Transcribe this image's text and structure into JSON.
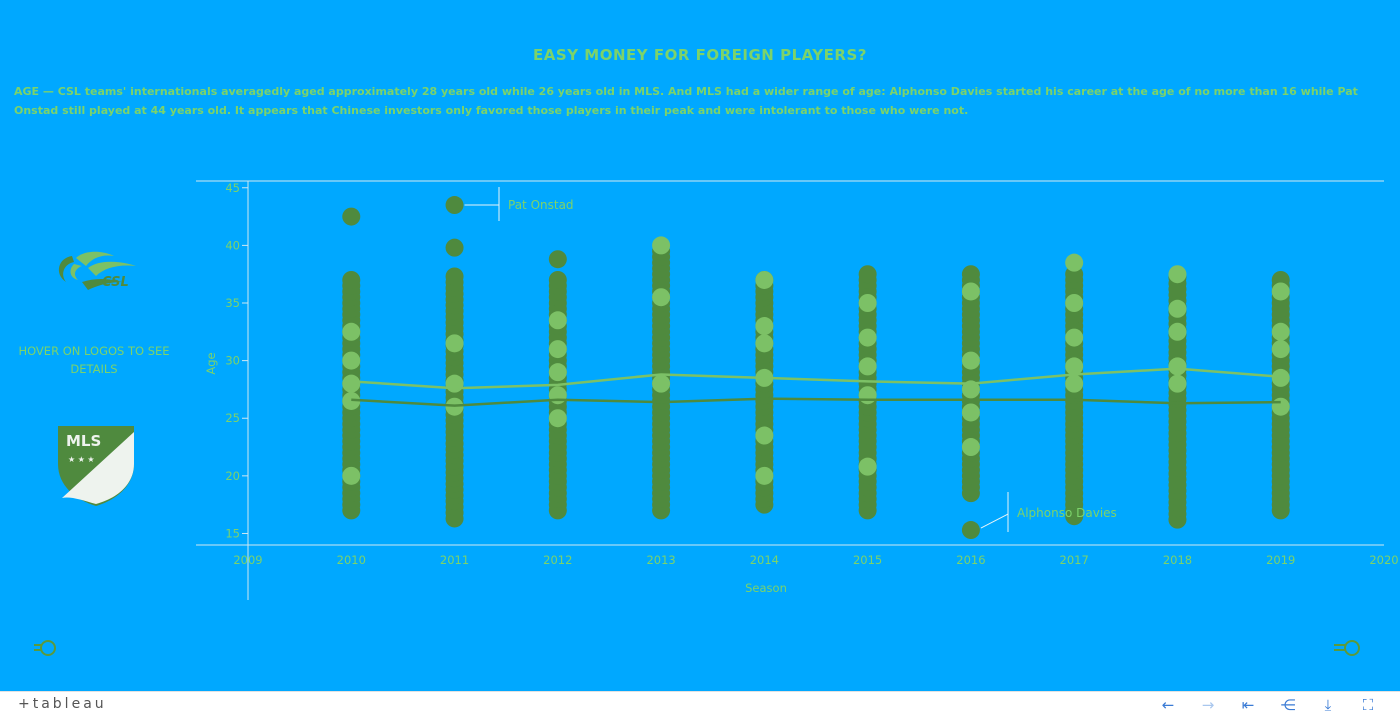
{
  "header": {
    "title": "EASY MONEY FOR FOREIGN PLAYERS?",
    "description": "AGE — CSL teams' internationals averagedly aged approximately 28 years old while 26 years old in MLS. And MLS had a wider range of age: Alphonso Davies started his career at the age of no more than 16 while Pat Onstad still played at 44 years old. It appears that Chinese investors only favored those players in their peak and were intolerant to those who were not."
  },
  "sidebar": {
    "hover_note": "HOVER ON LOGOS TO SEE DETAILS",
    "csl_logo_text": "CSL",
    "mls_logo_text": "MLS"
  },
  "colors": {
    "background": "#00a8ff",
    "accent_text": "#7cd36a",
    "mls_dark_green": "#4f8a3e",
    "csl_light_green": "#7cc166",
    "axis_line": "#cfe8f2"
  },
  "toolbar": {
    "brand": "+tableau",
    "icons": [
      "undo-icon",
      "redo-icon",
      "revert-icon",
      "share-icon",
      "download-icon",
      "fullscreen-icon"
    ]
  },
  "chart_data": {
    "type": "scatter",
    "xlabel": "Season",
    "ylabel": "Age",
    "xlim": [
      2009,
      2020
    ],
    "ylim": [
      14,
      45.5
    ],
    "x_ticks": [
      2009,
      2010,
      2011,
      2012,
      2013,
      2014,
      2015,
      2016,
      2017,
      2018,
      2019,
      2020
    ],
    "y_ticks": [
      15,
      20,
      25,
      30,
      35,
      40,
      45
    ],
    "grid": false,
    "series": [
      {
        "name": "MLS",
        "color": "#4f8a3e",
        "ranges": [
          {
            "season": 2010,
            "min": 17,
            "max": 37
          },
          {
            "season": 2011,
            "min": 16.3,
            "max": 37.5
          },
          {
            "season": 2012,
            "min": 17,
            "max": 37
          },
          {
            "season": 2013,
            "min": 17,
            "max": 39.5
          },
          {
            "season": 2014,
            "min": 17.5,
            "max": 37.3
          },
          {
            "season": 2015,
            "min": 17,
            "max": 37.5
          },
          {
            "season": 2016,
            "min": 18.5,
            "max": 37.5
          },
          {
            "season": 2017,
            "min": 16.5,
            "max": 37.5
          },
          {
            "season": 2018,
            "min": 16.2,
            "max": 37.5
          },
          {
            "season": 2019,
            "min": 17,
            "max": 37.3
          }
        ],
        "outliers": [
          {
            "season": 2010,
            "age": 42.5
          },
          {
            "season": 2011,
            "age": 43.5
          },
          {
            "season": 2011,
            "age": 39.8
          },
          {
            "season": 2012,
            "age": 38.8
          },
          {
            "season": 2016,
            "age": 15.3
          }
        ],
        "average": [
          26.6,
          26.1,
          26.6,
          26.4,
          26.7,
          26.6,
          26.6,
          26.6,
          26.3,
          26.4
        ]
      },
      {
        "name": "CSL",
        "color": "#7cc166",
        "points": [
          {
            "season": 2010,
            "age": 32.5
          },
          {
            "season": 2010,
            "age": 30
          },
          {
            "season": 2010,
            "age": 28
          },
          {
            "season": 2010,
            "age": 26.5
          },
          {
            "season": 2010,
            "age": 20
          },
          {
            "season": 2011,
            "age": 31.5
          },
          {
            "season": 2011,
            "age": 28
          },
          {
            "season": 2011,
            "age": 26
          },
          {
            "season": 2012,
            "age": 33.5
          },
          {
            "season": 2012,
            "age": 31
          },
          {
            "season": 2012,
            "age": 29
          },
          {
            "season": 2012,
            "age": 27
          },
          {
            "season": 2012,
            "age": 25
          },
          {
            "season": 2013,
            "age": 40
          },
          {
            "season": 2013,
            "age": 35.5
          },
          {
            "season": 2013,
            "age": 28
          },
          {
            "season": 2014,
            "age": 37
          },
          {
            "season": 2014,
            "age": 33
          },
          {
            "season": 2014,
            "age": 31.5
          },
          {
            "season": 2014,
            "age": 28.5
          },
          {
            "season": 2014,
            "age": 23.5
          },
          {
            "season": 2014,
            "age": 20
          },
          {
            "season": 2015,
            "age": 35
          },
          {
            "season": 2015,
            "age": 32
          },
          {
            "season": 2015,
            "age": 29.5
          },
          {
            "season": 2015,
            "age": 27
          },
          {
            "season": 2015,
            "age": 20.8
          },
          {
            "season": 2016,
            "age": 36
          },
          {
            "season": 2016,
            "age": 30
          },
          {
            "season": 2016,
            "age": 27.5
          },
          {
            "season": 2016,
            "age": 25.5
          },
          {
            "season": 2016,
            "age": 22.5
          },
          {
            "season": 2017,
            "age": 38.5
          },
          {
            "season": 2017,
            "age": 35
          },
          {
            "season": 2017,
            "age": 32
          },
          {
            "season": 2017,
            "age": 29.5
          },
          {
            "season": 2017,
            "age": 28
          },
          {
            "season": 2018,
            "age": 37.5
          },
          {
            "season": 2018,
            "age": 34.5
          },
          {
            "season": 2018,
            "age": 32.5
          },
          {
            "season": 2018,
            "age": 29.5
          },
          {
            "season": 2018,
            "age": 28
          },
          {
            "season": 2019,
            "age": 36
          },
          {
            "season": 2019,
            "age": 32.5
          },
          {
            "season": 2019,
            "age": 31
          },
          {
            "season": 2019,
            "age": 28.5
          },
          {
            "season": 2019,
            "age": 26
          }
        ],
        "average": [
          28.2,
          27.6,
          27.9,
          28.8,
          28.5,
          28.2,
          28.0,
          28.8,
          29.3,
          28.6
        ]
      }
    ],
    "annotations": [
      {
        "label": "Pat Onstad",
        "season": 2011,
        "age": 43.5
      },
      {
        "label": "Alphonso Davies",
        "season": 2016,
        "age": 15.3
      }
    ]
  }
}
